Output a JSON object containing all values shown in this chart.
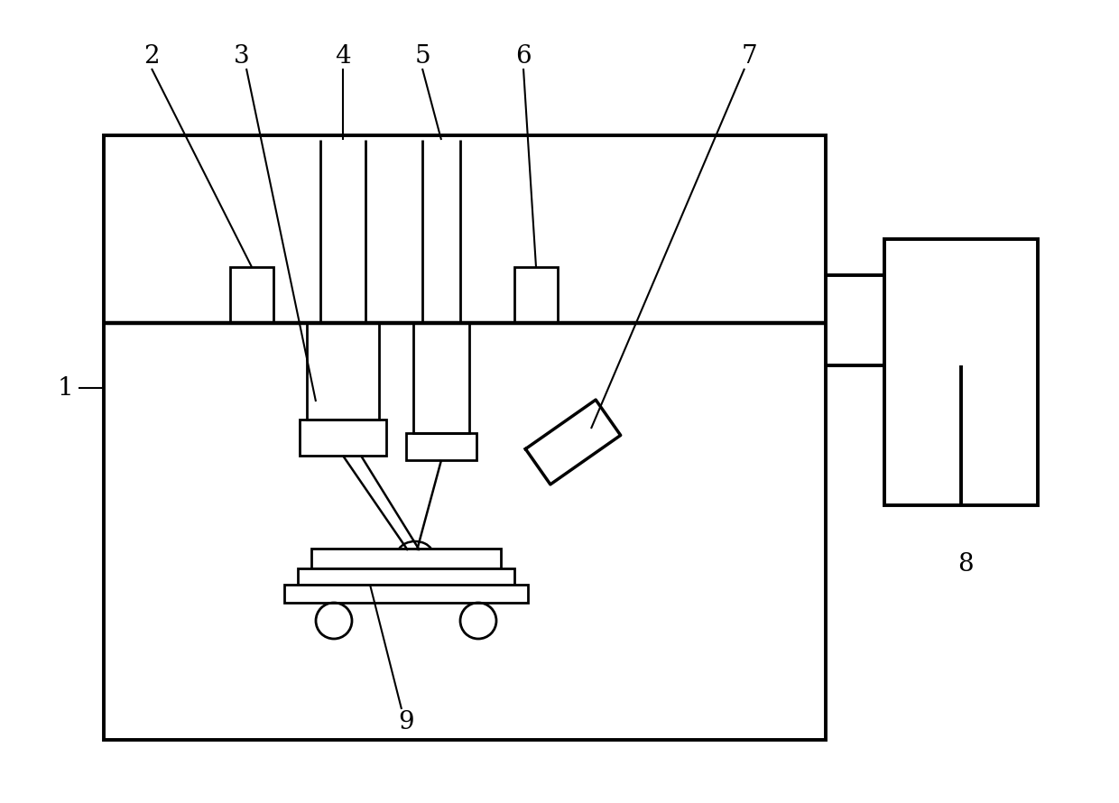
{
  "bg_color": "#ffffff",
  "line_color": "#000000",
  "lw_main": 2.5,
  "lw_thin": 1.8,
  "fig_width": 12.4,
  "fig_height": 8.9,
  "dpi": 100
}
